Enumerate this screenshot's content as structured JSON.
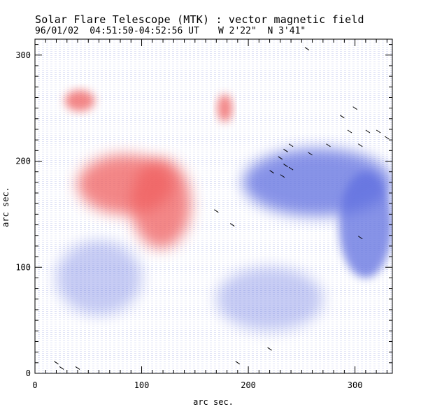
{
  "header": {
    "title": "Solar Flare Telescope (MTK) : vector magnetic field",
    "date_time": "96/01/02  04:51:50-04:52:56 UT",
    "position": "W 2'22\"  N 3'41\""
  },
  "chart_data": {
    "type": "heatmap",
    "title": "Solar Flare Telescope (MTK) : vector magnetic field",
    "xlabel": "arc sec.",
    "ylabel": "arc sec.",
    "xlim": [
      0,
      335
    ],
    "ylim": [
      0,
      315
    ],
    "x_ticks": [
      0,
      100,
      200,
      300
    ],
    "y_ticks": [
      0,
      100,
      200,
      300
    ],
    "colors": {
      "positive": "#f06060",
      "negative": "#6070e0",
      "vector": "#000000"
    },
    "regions": [
      {
        "polarity": "positive",
        "label": "main positive patch",
        "x": 85,
        "y": 178,
        "rx": 45,
        "ry": 28
      },
      {
        "polarity": "positive",
        "label": "positive arm",
        "x": 118,
        "y": 160,
        "rx": 28,
        "ry": 42
      },
      {
        "polarity": "positive",
        "label": "positive blob NW",
        "x": 42,
        "y": 257,
        "rx": 14,
        "ry": 10
      },
      {
        "polarity": "positive",
        "label": "positive small",
        "x": 178,
        "y": 250,
        "rx": 7,
        "ry": 13
      },
      {
        "polarity": "negative",
        "label": "main negative patch",
        "x": 265,
        "y": 180,
        "rx": 70,
        "ry": 32
      },
      {
        "polarity": "negative",
        "label": "negative extension",
        "x": 310,
        "y": 140,
        "rx": 25,
        "ry": 50
      },
      {
        "polarity": "negative",
        "label": "negative diffuse SW",
        "x": 60,
        "y": 90,
        "rx": 40,
        "ry": 35
      },
      {
        "polarity": "negative",
        "label": "negative diffuse S",
        "x": 220,
        "y": 70,
        "rx": 50,
        "ry": 30
      }
    ],
    "vectors": [
      {
        "x": 235,
        "y": 210
      },
      {
        "x": 240,
        "y": 215
      },
      {
        "x": 230,
        "y": 203
      },
      {
        "x": 235,
        "y": 196
      },
      {
        "x": 240,
        "y": 193
      },
      {
        "x": 222,
        "y": 190
      },
      {
        "x": 232,
        "y": 186
      },
      {
        "x": 258,
        "y": 207
      },
      {
        "x": 275,
        "y": 215
      },
      {
        "x": 288,
        "y": 242
      },
      {
        "x": 300,
        "y": 250
      },
      {
        "x": 295,
        "y": 228
      },
      {
        "x": 312,
        "y": 228
      },
      {
        "x": 322,
        "y": 228
      },
      {
        "x": 330,
        "y": 222
      },
      {
        "x": 305,
        "y": 215
      },
      {
        "x": 305,
        "y": 128
      },
      {
        "x": 170,
        "y": 153
      },
      {
        "x": 185,
        "y": 140
      },
      {
        "x": 220,
        "y": 23
      },
      {
        "x": 190,
        "y": 10
      },
      {
        "x": 25,
        "y": 5
      },
      {
        "x": 40,
        "y": 5
      },
      {
        "x": 255,
        "y": 306
      },
      {
        "x": 20,
        "y": 10
      }
    ]
  }
}
